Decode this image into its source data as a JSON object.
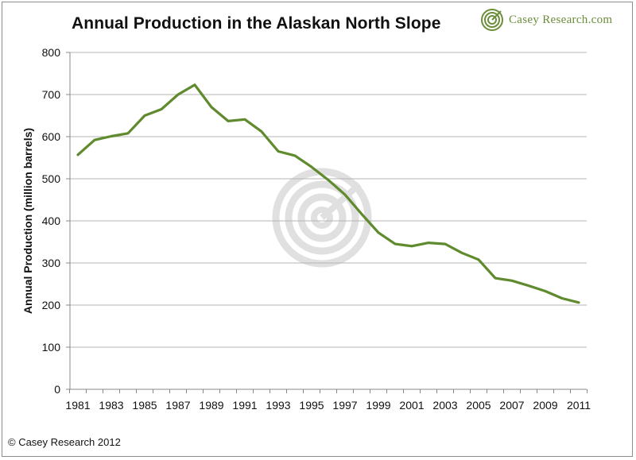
{
  "header": {
    "title": "Annual Production in the Alaskan North Slope",
    "brand": "Casey Research.com"
  },
  "footer": {
    "copyright": "© Casey Research 2012"
  },
  "colors": {
    "line": "#5f8a2d",
    "grid": "#b5b5b5",
    "brand": "#6b8e3a",
    "watermark": "#d9d9d9"
  },
  "icons": {
    "brand_logo": "target-spiral-icon",
    "watermark": "target-spiral-watermark"
  },
  "chart_data": {
    "type": "line",
    "title": "Annual Production in the Alaskan North Slope",
    "xlabel": "",
    "ylabel": "Annual Production (million barrels)",
    "x": [
      1981,
      1982,
      1983,
      1984,
      1985,
      1986,
      1987,
      1988,
      1989,
      1990,
      1991,
      1992,
      1993,
      1994,
      1995,
      1996,
      1997,
      1998,
      1999,
      2000,
      2001,
      2002,
      2003,
      2004,
      2005,
      2006,
      2007,
      2008,
      2009,
      2010,
      2011
    ],
    "series": [
      {
        "values": [
          557,
          592,
          601,
          608,
          650,
          665,
          700,
          723,
          670,
          637,
          641,
          612,
          565,
          555,
          528,
          497,
          462,
          416,
          372,
          345,
          340,
          348,
          345,
          324,
          308,
          264,
          258,
          246,
          233,
          216,
          206
        ]
      }
    ],
    "x_tick_labels": [
      "1981",
      "1983",
      "1985",
      "1987",
      "1989",
      "1991",
      "1993",
      "1995",
      "1997",
      "1999",
      "2001",
      "2003",
      "2005",
      "2007",
      "2009",
      "2011"
    ],
    "y_tick_labels": [
      "0",
      "100",
      "200",
      "300",
      "400",
      "500",
      "600",
      "700",
      "800"
    ],
    "ylim": [
      0,
      800
    ],
    "y_step": 100,
    "xlim": [
      1981,
      2011
    ],
    "grid": "horizontal",
    "legend": "none"
  }
}
